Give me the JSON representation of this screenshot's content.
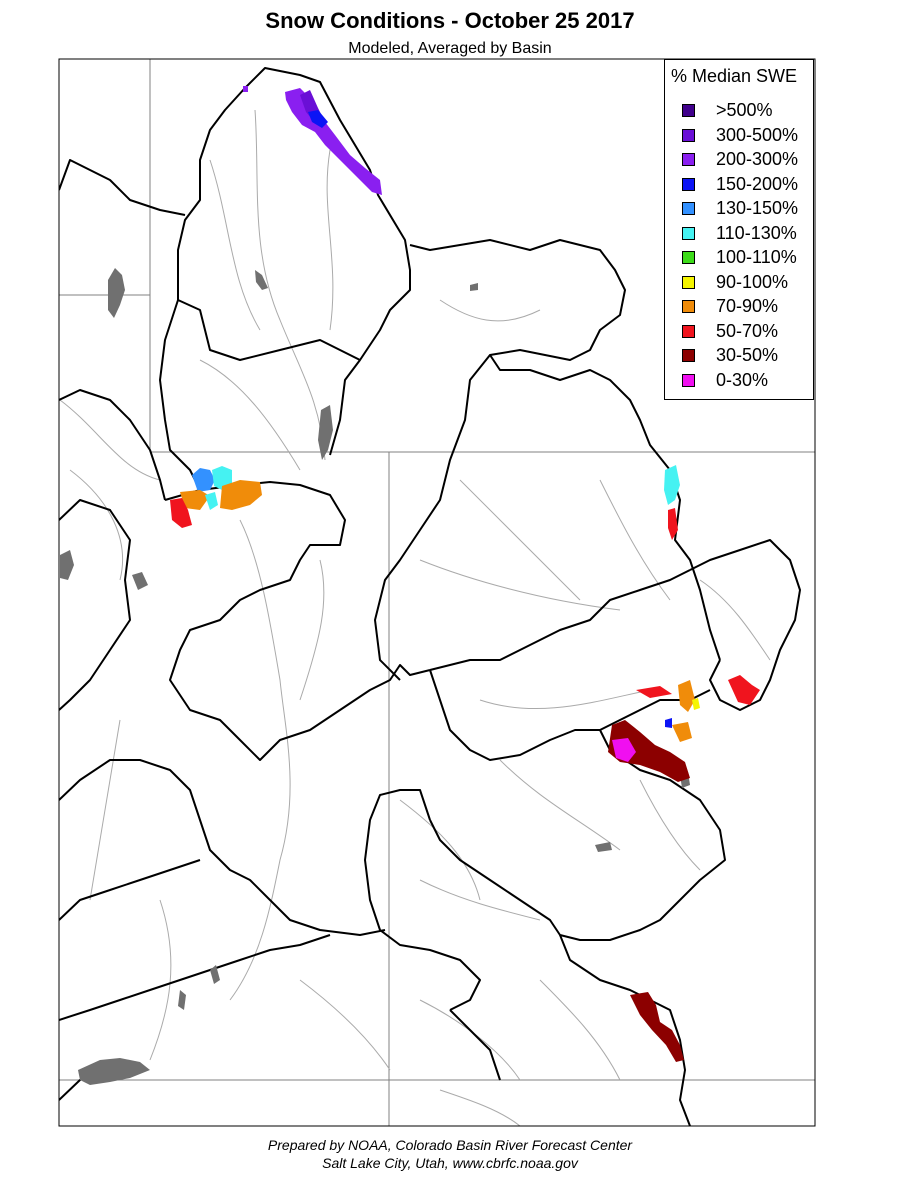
{
  "header": {
    "title": "Snow Conditions - October 25 2017",
    "subtitle": "Modeled, Averaged by Basin"
  },
  "legend": {
    "title": "% Median SWE",
    "items": [
      {
        "label": ">500%",
        "color": "#40008c"
      },
      {
        "label": "300-500%",
        "color": "#6a0fd6"
      },
      {
        "label": "200-300%",
        "color": "#8a1ff0"
      },
      {
        "label": "150-200%",
        "color": "#0c14f5"
      },
      {
        "label": "130-150%",
        "color": "#3391ff"
      },
      {
        "label": "110-130%",
        "color": "#45f2f2"
      },
      {
        "label": "100-110%",
        "color": "#3ddc1a"
      },
      {
        "label": "90-100%",
        "color": "#f5f500"
      },
      {
        "label": "70-90%",
        "color": "#f08c0a"
      },
      {
        "label": "50-70%",
        "color": "#f0141e"
      },
      {
        "label": "30-50%",
        "color": "#8c0000"
      },
      {
        "label": "0-30%",
        "color": "#f00ff0"
      }
    ]
  },
  "footer": {
    "line1": "Prepared by NOAA, Colorado Basin River Forecast Center",
    "line2": "Salt Lake City, Utah, www.cbrfc.noaa.gov"
  },
  "map_style": {
    "background": "#ffffff",
    "state_line_color": "#808080",
    "basin_line_color": "#000000",
    "river_color": "#aaaaaa",
    "lake_color": "#707070"
  }
}
